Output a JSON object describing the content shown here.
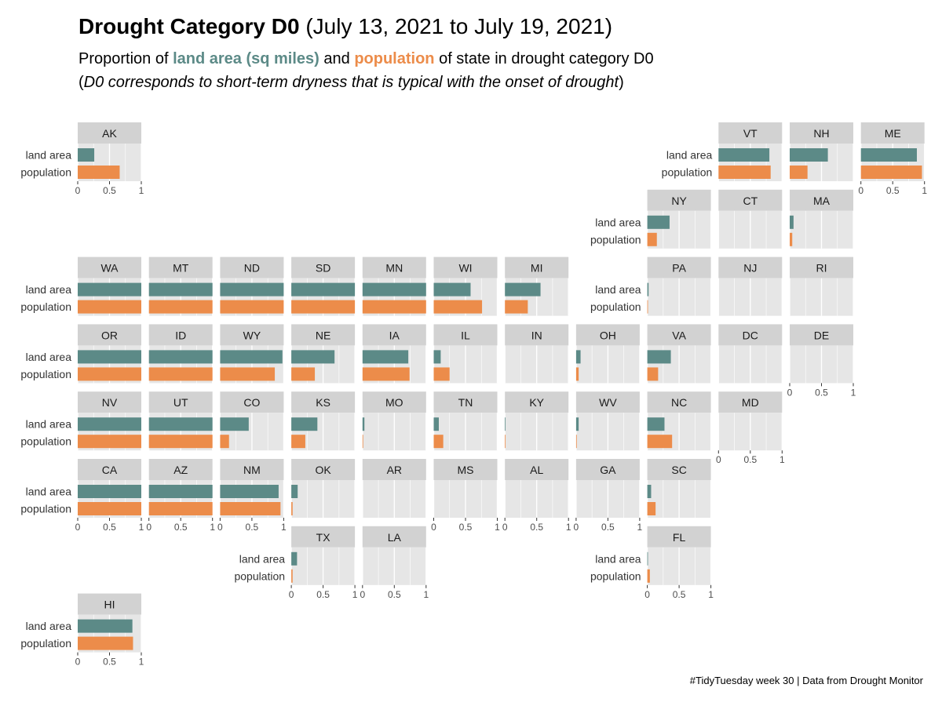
{
  "title": {
    "bold": "Drought Category D0",
    "rest": "(July 13, 2021 to July 19, 2021)"
  },
  "subtitle": {
    "part1": "Proportion of ",
    "land": "land area (sq miles)",
    "part2": " and ",
    "population": "population",
    "part3": " of state in drought category D0"
  },
  "note": {
    "open": "(",
    "text": "D0 corresponds to short-term dryness that is typical with the onset of drought",
    "close": ")"
  },
  "caption": "#TidyTuesday week 30 | Data from Drought Monitor",
  "colors": {
    "land_area": "#5c8a87",
    "population": "#ec8c4a",
    "strip": "#d2d2d2",
    "panel": "#e6e6e6",
    "gridline": "#ffffff"
  },
  "chart_data": {
    "type": "bar",
    "orientation": "horizontal",
    "layout": "geofacet-us-states",
    "categories": [
      "land area",
      "population"
    ],
    "xlim": [
      0,
      1
    ],
    "x_ticks": [
      "0",
      "0.5",
      "1"
    ],
    "grid": true,
    "legend": "none",
    "series": [
      {
        "name": "land area",
        "color": "#5c8a87"
      },
      {
        "name": "population",
        "color": "#ec8c4a"
      }
    ],
    "states": [
      {
        "state": "AK",
        "land_area": 0.26,
        "population": 0.66
      },
      {
        "state": "VT",
        "land_area": 0.8,
        "population": 0.82
      },
      {
        "state": "NH",
        "land_area": 0.6,
        "population": 0.28
      },
      {
        "state": "ME",
        "land_area": 0.88,
        "population": 0.96
      },
      {
        "state": "NY",
        "land_area": 0.35,
        "population": 0.15
      },
      {
        "state": "CT",
        "land_area": 0,
        "population": 0
      },
      {
        "state": "MA",
        "land_area": 0.06,
        "population": 0.04
      },
      {
        "state": "WA",
        "land_area": 1.0,
        "population": 1.0
      },
      {
        "state": "MT",
        "land_area": 1.0,
        "population": 1.0
      },
      {
        "state": "ND",
        "land_area": 1.0,
        "population": 1.0
      },
      {
        "state": "SD",
        "land_area": 1.0,
        "population": 1.0
      },
      {
        "state": "MN",
        "land_area": 1.0,
        "population": 1.0
      },
      {
        "state": "WI",
        "land_area": 0.58,
        "population": 0.76
      },
      {
        "state": "MI",
        "land_area": 0.56,
        "population": 0.36
      },
      {
        "state": "PA",
        "land_area": 0.02,
        "population": 0.01
      },
      {
        "state": "NJ",
        "land_area": 0,
        "population": 0
      },
      {
        "state": "RI",
        "land_area": 0,
        "population": 0
      },
      {
        "state": "OR",
        "land_area": 1.0,
        "population": 1.0
      },
      {
        "state": "ID",
        "land_area": 1.0,
        "population": 1.0
      },
      {
        "state": "WY",
        "land_area": 0.98,
        "population": 0.86
      },
      {
        "state": "NE",
        "land_area": 0.68,
        "population": 0.37
      },
      {
        "state": "IA",
        "land_area": 0.72,
        "population": 0.74
      },
      {
        "state": "IL",
        "land_area": 0.11,
        "population": 0.25
      },
      {
        "state": "IN",
        "land_area": 0,
        "population": 0
      },
      {
        "state": "OH",
        "land_area": 0.07,
        "population": 0.04
      },
      {
        "state": "VA",
        "land_area": 0.37,
        "population": 0.17
      },
      {
        "state": "DC",
        "land_area": 0,
        "population": 0
      },
      {
        "state": "DE",
        "land_area": 0,
        "population": 0
      },
      {
        "state": "NV",
        "land_area": 1.0,
        "population": 1.0
      },
      {
        "state": "UT",
        "land_area": 1.0,
        "population": 1.0
      },
      {
        "state": "CO",
        "land_area": 0.45,
        "population": 0.14
      },
      {
        "state": "KS",
        "land_area": 0.41,
        "population": 0.22
      },
      {
        "state": "MO",
        "land_area": 0.03,
        "population": 0.01
      },
      {
        "state": "TN",
        "land_area": 0.08,
        "population": 0.15
      },
      {
        "state": "KY",
        "land_area": 0.01,
        "population": 0.01
      },
      {
        "state": "WV",
        "land_area": 0.04,
        "population": 0.01
      },
      {
        "state": "NC",
        "land_area": 0.27,
        "population": 0.39
      },
      {
        "state": "MD",
        "land_area": 0,
        "population": 0
      },
      {
        "state": "CA",
        "land_area": 1.0,
        "population": 1.0
      },
      {
        "state": "AZ",
        "land_area": 1.0,
        "population": 1.0
      },
      {
        "state": "NM",
        "land_area": 0.92,
        "population": 0.95
      },
      {
        "state": "OK",
        "land_area": 0.1,
        "population": 0.02
      },
      {
        "state": "AR",
        "land_area": 0,
        "population": 0
      },
      {
        "state": "MS",
        "land_area": 0,
        "population": 0
      },
      {
        "state": "AL",
        "land_area": 0,
        "population": 0
      },
      {
        "state": "GA",
        "land_area": 0,
        "population": 0
      },
      {
        "state": "SC",
        "land_area": 0.06,
        "population": 0.13
      },
      {
        "state": "TX",
        "land_area": 0.09,
        "population": 0.02
      },
      {
        "state": "LA",
        "land_area": 0,
        "population": 0
      },
      {
        "state": "FL",
        "land_area": 0.01,
        "population": 0.04
      },
      {
        "state": "HI",
        "land_area": 0.86,
        "population": 0.87
      }
    ]
  }
}
